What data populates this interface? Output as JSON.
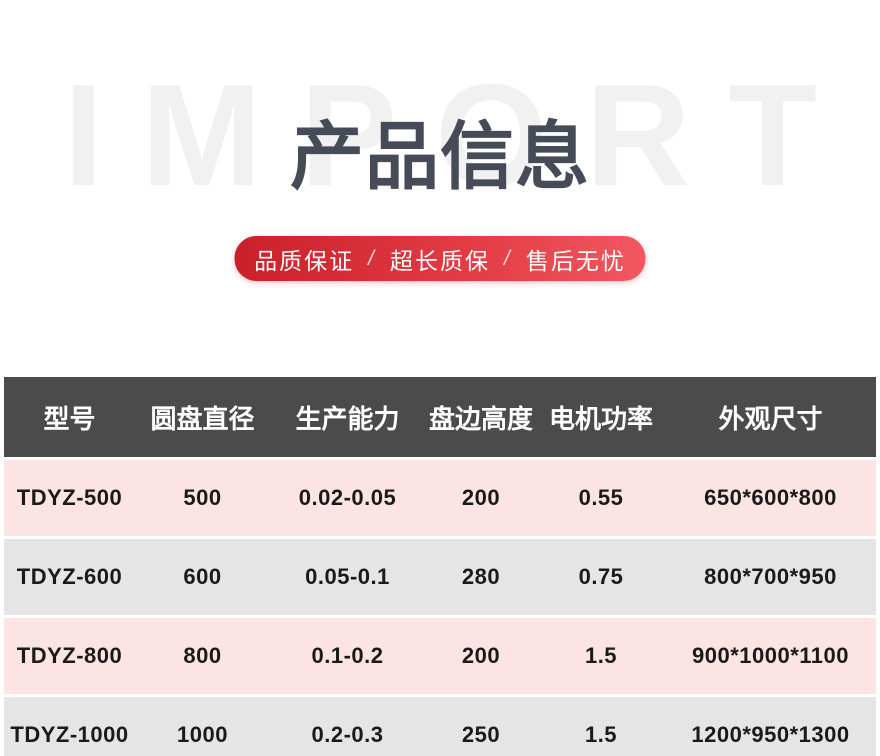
{
  "hero": {
    "watermark": "IMPORT",
    "title": "产品信息",
    "badges": [
      "品质保证",
      "超长质保",
      "售后无忧"
    ],
    "badge_separator": "/"
  },
  "colors": {
    "banner_gradient_start": "#c9202a",
    "banner_gradient_end": "#f25760",
    "title_text": "#454b57",
    "watermark_text": "#f1f1f1",
    "table_header_bg": "#4b4b4b",
    "table_header_text": "#ffffff",
    "row_pink_bg": "#fce4e4",
    "row_gray_bg": "#e5e5e5",
    "row_text": "#1a1a1a"
  },
  "table": {
    "columns": [
      "型号",
      "圆盘直径",
      "生产能力",
      "盘边高度",
      "电机功率",
      "外观尺寸"
    ],
    "rows": [
      [
        "TDYZ-500",
        "500",
        "0.02-0.05",
        "200",
        "0.55",
        "650*600*800"
      ],
      [
        "TDYZ-600",
        "600",
        "0.05-0.1",
        "280",
        "0.75",
        "800*700*950"
      ],
      [
        "TDYZ-800",
        "800",
        "0.1-0.2",
        "200",
        "1.5",
        "900*1000*1100"
      ],
      [
        "TDYZ-1000",
        "1000",
        "0.2-0.3",
        "250",
        "1.5",
        "1200*950*1300"
      ]
    ]
  }
}
